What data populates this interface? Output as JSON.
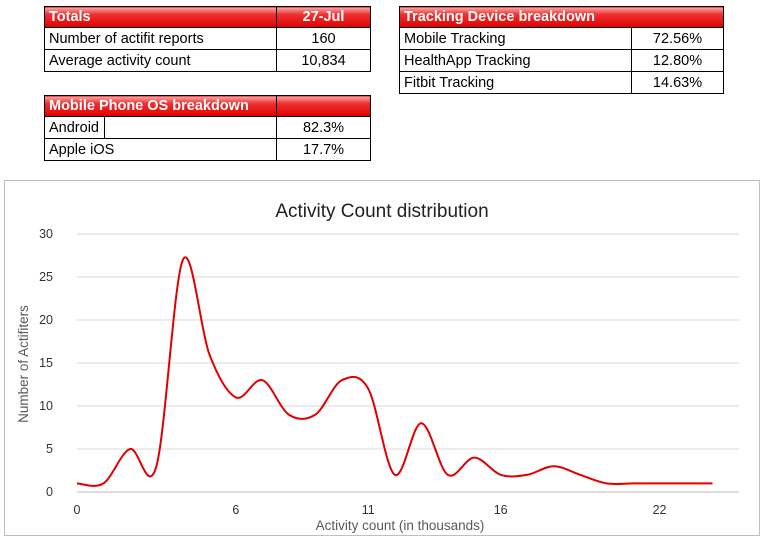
{
  "totals": {
    "header_label": "Totals",
    "header_date": "27-Jul",
    "rows": [
      {
        "label": "Number of actifit reports",
        "value": "160"
      },
      {
        "label": "Average activity count",
        "value": "10,834"
      }
    ]
  },
  "device_breakdown": {
    "header": "Tracking Device breakdown",
    "rows": [
      {
        "label": "Mobile Tracking",
        "value": "72.56%"
      },
      {
        "label": "HealthApp Tracking",
        "value": "12.80%"
      },
      {
        "label": "Fitbit Tracking",
        "value": "14.63%"
      }
    ]
  },
  "os_breakdown": {
    "header": "Mobile Phone OS breakdown",
    "rows": [
      {
        "label": "Android",
        "value": "82.3%"
      },
      {
        "label": "Apple iOS",
        "value": "17.7%"
      }
    ]
  },
  "colors": {
    "header_red": "#e00000",
    "line": "#e00000",
    "grid": "#d9d9d9"
  },
  "chart_data": {
    "type": "line",
    "title": "Activity Count distribution",
    "xlabel": "Activity count (in thousands)",
    "ylabel": "Number of Actifiters",
    "xlim": [
      0,
      25
    ],
    "ylim": [
      0,
      30
    ],
    "xticks": [
      0,
      6,
      11,
      16,
      22
    ],
    "yticks": [
      0,
      5,
      10,
      15,
      20,
      25,
      30
    ],
    "grid": "horizontal",
    "smooth": true,
    "series": [
      {
        "name": "Number of Actifiters",
        "x": [
          0,
          1,
          2,
          3,
          4,
          5,
          6,
          7,
          8,
          9,
          10,
          11,
          12,
          13,
          14,
          15,
          16,
          17,
          18,
          19,
          20,
          21,
          22,
          23,
          24
        ],
        "values": [
          1,
          1,
          5,
          3,
          27,
          16,
          11,
          13,
          9,
          9,
          13,
          12,
          2,
          8,
          2,
          4,
          2,
          2,
          3,
          2,
          1,
          1,
          1,
          1,
          1
        ]
      }
    ]
  }
}
